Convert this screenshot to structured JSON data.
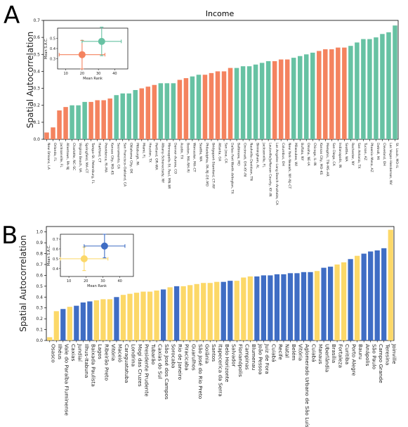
{
  "chart_data": [
    {
      "panel_label": "A",
      "type": "bar",
      "title": "Income",
      "xlabel": "",
      "ylabel": "Spatial Autocorrelation",
      "ylim": [
        0,
        0.7
      ],
      "yticks": [
        "0.0",
        "0.1",
        "0.2",
        "0.3",
        "0.4",
        "0.5",
        "0.6",
        "0.7"
      ],
      "colors": {
        "group_1": "#f4835f",
        "group_2": "#67c2a3"
      },
      "categories": [
        "New Orleans, LA",
        "Orlando, FL",
        "Jacksonville, FL",
        "Allentown, PA–NJ",
        "Charlotte, NC–SC",
        "Virginia Beach, VA",
        "Springfield, MA–CT",
        "Tampa–St. Petersburg, FL",
        "Hartford, CT",
        "Providence, RI–MA",
        "Kansas City, MO–KS",
        "Sacramento, CA",
        "San Francisco–Oakland, CA",
        "Oklahoma City, OK",
        "Pittsburgh, PA",
        "Miami, FL",
        "Houston, TX",
        "Portland, OR–WA",
        "Albany–Schenectady, NY",
        "Minneapolis–St. Paul, MN–WI",
        "Denver–Aurora, CO",
        "Austin, TX",
        "Boston, MA–NH–RI",
        "Worcester, MA–CT",
        "Seattle, WA",
        "Philadelphia, PA–NJ–DE–MD",
        "Bridgeport–Stamford, CT–NY",
        "Atlanta, GA",
        "San Jose, CA",
        "Dallas–Fort Worth–Arlington, TX",
        "Baltimore, MD",
        "Cincinnati, OH–KY–IN",
        "Nashville–Davidson, TN",
        "Birmingham, AL",
        "Jacksonville, FL",
        "Louisville/Jefferson County, KY–IN",
        "Los Angeles–Long Beach–Anaheim, CA",
        "Columbus, OH",
        "New York–Newark, NY–NJ–CT",
        "Milwaukee, WI",
        "Buffalo, NY",
        "Omaha, NE–IA",
        "Chicago, IL–IN",
        "Kansas City, MO–KS",
        "Memphis, TN–MS–AR",
        "San Diego, CA",
        "Indianapolis, IN",
        "Seattle, WA",
        "Rochester, NY",
        "San Antonio, TX",
        "Tucson, AZ",
        "Phoenix–Mesa, AZ",
        "Detroit, MI",
        "Cleveland, OH",
        "Las Vegas–Henderson, NV",
        "St. Louis, MO–IL"
      ],
      "label_every": 1,
      "values": [
        0.04,
        0.07,
        0.17,
        0.19,
        0.2,
        0.2,
        0.22,
        0.22,
        0.23,
        0.23,
        0.24,
        0.26,
        0.27,
        0.27,
        0.29,
        0.3,
        0.31,
        0.32,
        0.33,
        0.33,
        0.33,
        0.35,
        0.36,
        0.37,
        0.38,
        0.38,
        0.39,
        0.4,
        0.4,
        0.42,
        0.42,
        0.43,
        0.43,
        0.44,
        0.45,
        0.46,
        0.46,
        0.47,
        0.47,
        0.48,
        0.49,
        0.5,
        0.51,
        0.52,
        0.53,
        0.53,
        0.54,
        0.54,
        0.55,
        0.57,
        0.59,
        0.59,
        0.6,
        0.62,
        0.63,
        0.67
      ],
      "groups": [
        1,
        1,
        1,
        1,
        2,
        2,
        2,
        1,
        1,
        1,
        1,
        2,
        2,
        2,
        2,
        1,
        1,
        1,
        2,
        2,
        2,
        1,
        1,
        2,
        2,
        1,
        1,
        1,
        1,
        1,
        2,
        2,
        2,
        2,
        2,
        2,
        1,
        1,
        1,
        2,
        2,
        2,
        2,
        1,
        1,
        1,
        1,
        1,
        2,
        2,
        2,
        2,
        2,
        2,
        2,
        2
      ],
      "inset": {
        "xlabel": "Mean Rank",
        "ylabel": "Mean S.A.C.",
        "xlim": [
          5,
          48
        ],
        "ylim": [
          0.2,
          0.6
        ],
        "xticks": [
          "10",
          "20",
          "30",
          "40"
        ],
        "yticks": [
          "0.3",
          "0.4",
          "0.5"
        ],
        "points": [
          {
            "group": 1,
            "x": 20,
            "y": 0.34,
            "xerr": 14,
            "yerr": 0.14
          },
          {
            "group": 2,
            "x": 32,
            "y": 0.47,
            "xerr": 12,
            "yerr": 0.14
          }
        ]
      }
    },
    {
      "panel_label": "B",
      "type": "bar",
      "title": "",
      "xlabel": "",
      "ylabel": "Spatial Autocorrelation",
      "ylim": [
        0,
        1.05
      ],
      "yticks": [
        "0.0",
        "0.1",
        "0.2",
        "0.3",
        "0.4",
        "0.5",
        "0.6",
        "0.7",
        "0.8",
        "0.9",
        "1.0"
      ],
      "colors": {
        "group_1": "#fcd868",
        "group_2": "#3f6dc4"
      },
      "categories": [
        "Osasco",
        "Ilhéus",
        "Vale do Paraíba Fluminense",
        "Caxias",
        "Jundiaí",
        "Ilhus-Itabuna",
        "Baixada Paulista",
        "Lagos",
        "Ribeirão Preto",
        "Vitória",
        "Maceió",
        "Caraguatatuba",
        "Londrina",
        "Mogi das Cruzes",
        "Presidente Prudente",
        "Tubarão",
        "Caxias do Sul",
        "São José dos Campos",
        "Sorocaba",
        "Rio de Janeiro",
        "Piracicaba",
        "Guarulhos",
        "São José do Rio Preto",
        "Goiânia",
        "Santos",
        "Itapecerica da Serra",
        "Belo Horizonte",
        "Salvador",
        "Florianópolis",
        "Campinas",
        "Blumenau",
        "João Pessoa",
        "Juiz de Fora",
        "Cuiabá",
        "Recife",
        "Natal",
        "Belém",
        "Vitória",
        "Aglomerado Urbano de São Luís",
        "Cuiabá",
        "Manaus",
        "Uberlândia",
        "Brasília",
        "Fortaleza",
        "Curitiba",
        "Porto Alegre",
        "Bauru",
        "Anápolis",
        "São Paulo",
        "Campo Grande",
        "Teresina",
        "Joinville"
      ],
      "label_every": 1,
      "values": [
        0.03,
        0.27,
        0.29,
        0.31,
        0.32,
        0.35,
        0.36,
        0.37,
        0.38,
        0.38,
        0.4,
        0.42,
        0.43,
        0.44,
        0.45,
        0.45,
        0.46,
        0.47,
        0.49,
        0.5,
        0.5,
        0.51,
        0.52,
        0.53,
        0.53,
        0.54,
        0.54,
        0.55,
        0.55,
        0.58,
        0.59,
        0.59,
        0.6,
        0.6,
        0.61,
        0.61,
        0.62,
        0.62,
        0.63,
        0.63,
        0.64,
        0.67,
        0.68,
        0.7,
        0.72,
        0.75,
        0.78,
        0.8,
        0.82,
        0.83,
        0.85,
        1.02
      ],
      "groups": [
        1,
        1,
        2,
        1,
        2,
        2,
        2,
        1,
        1,
        1,
        2,
        1,
        1,
        1,
        1,
        1,
        1,
        2,
        1,
        2,
        1,
        1,
        1,
        1,
        1,
        1,
        2,
        2,
        1,
        1,
        1,
        2,
        2,
        2,
        2,
        2,
        2,
        2,
        2,
        2,
        1,
        2,
        2,
        1,
        1,
        2,
        1,
        2,
        2,
        2,
        2,
        1
      ],
      "inset": {
        "xlabel": "Mean Rank",
        "ylabel": "Mean S.A.C.",
        "xlim": [
          5,
          48
        ],
        "ylim": [
          0.32,
          0.75
        ],
        "xticks": [
          "10",
          "20",
          "30",
          "40"
        ],
        "yticks": [
          "0.4",
          "0.5",
          "0.6",
          "0.7"
        ],
        "points": [
          {
            "group": 1,
            "x": 19,
            "y": 0.5,
            "xerr": 14,
            "yerr": 0.12
          },
          {
            "group": 2,
            "x": 31,
            "y": 0.63,
            "xerr": 12,
            "yerr": 0.12
          }
        ]
      }
    }
  ]
}
